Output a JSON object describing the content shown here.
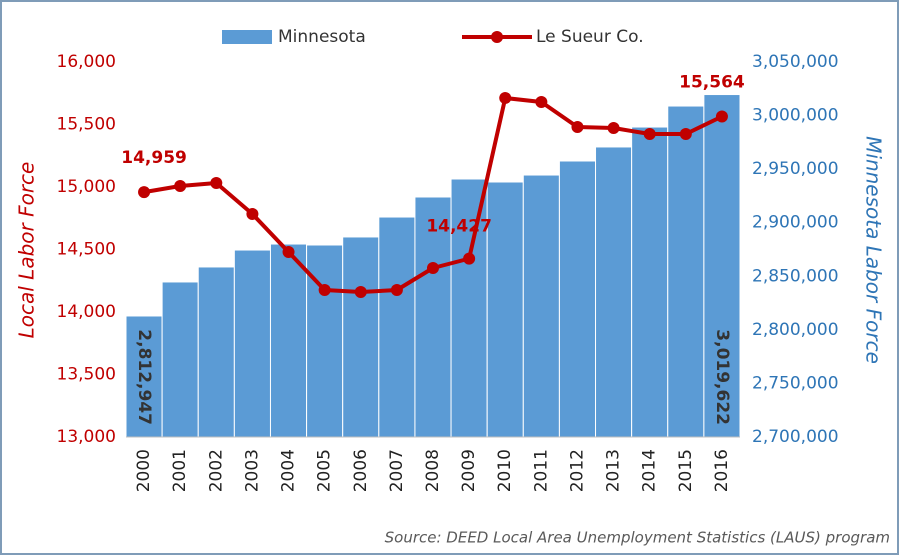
{
  "chart_data": {
    "type": "combo",
    "source": "Source: DEED Local Area Unemployment Statistics (LAUS) program",
    "ylabel": "Local Labor Force",
    "y2label": "Minnesota Labor Force",
    "categories": [
      "2000",
      "2001",
      "2002",
      "2003",
      "2004",
      "2005",
      "2006",
      "2007",
      "2008",
      "2009",
      "2010",
      "2011",
      "2012",
      "2013",
      "2014",
      "2015",
      "2016"
    ],
    "series": [
      {
        "name": "Minnesota",
        "type": "bar",
        "axis": "y2",
        "color": "#5b9bd5",
        "values": [
          2812947,
          2844700,
          2858700,
          2874500,
          2880100,
          2879200,
          2886700,
          2905300,
          2924000,
          2940800,
          2938000,
          2944500,
          2957600,
          2970700,
          2989300,
          3008900,
          3019622
        ],
        "value_labels": [
          "2,812,947",
          null,
          null,
          null,
          null,
          null,
          null,
          null,
          null,
          null,
          null,
          null,
          null,
          null,
          null,
          null,
          "3,019,622"
        ]
      },
      {
        "name": "Le Sueur Co.",
        "type": "line",
        "color": "#c00000",
        "values": [
          14959,
          15008,
          15032,
          14784,
          14480,
          14176,
          14160,
          14176,
          14352,
          14427,
          15712,
          15680,
          15480,
          15472,
          15424,
          15424,
          15564
        ],
        "value_labels": [
          "14,959",
          null,
          null,
          null,
          null,
          null,
          null,
          null,
          null,
          "14,427",
          null,
          null,
          null,
          null,
          null,
          null,
          "15,564"
        ]
      }
    ],
    "ylim": [
      13000,
      16000
    ],
    "yticks": [
      {
        "value": 13000,
        "label": "13,000"
      },
      {
        "value": 13500,
        "label": "13,500"
      },
      {
        "value": 14000,
        "label": "14,000"
      },
      {
        "value": 14500,
        "label": "14,500"
      },
      {
        "value": 15000,
        "label": "15,000"
      },
      {
        "value": 15500,
        "label": "15,500"
      },
      {
        "value": 16000,
        "label": "16,000"
      }
    ],
    "y2lim": [
      2700000,
      3050000
    ],
    "y2ticks": [
      {
        "value": 2700000,
        "label": "2,700,000"
      },
      {
        "value": 2750000,
        "label": "2,750,000"
      },
      {
        "value": 2800000,
        "label": "2,800,000"
      },
      {
        "value": 2850000,
        "label": "2,850,000"
      },
      {
        "value": 2900000,
        "label": "2,900,000"
      },
      {
        "value": 2950000,
        "label": "2,950,000"
      },
      {
        "value": 3000000,
        "label": "3,000,000"
      },
      {
        "value": 3050000,
        "label": "3,050,000"
      }
    ],
    "legend": "top",
    "grid": false
  }
}
